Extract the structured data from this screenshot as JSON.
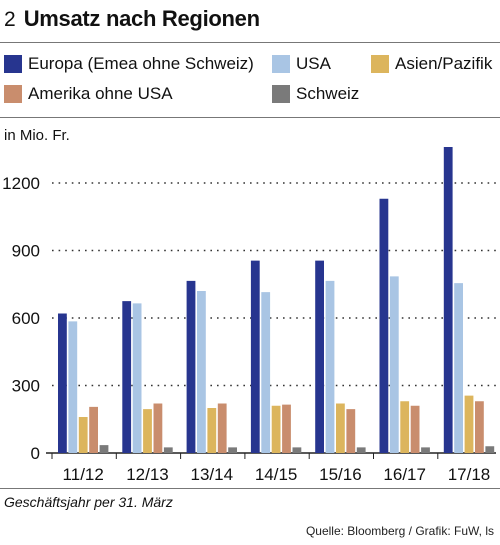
{
  "header": {
    "number": "2",
    "title": "Umsatz nach Regionen"
  },
  "unit_label": "in Mio. Fr.",
  "footnote": "Geschäftsjahr per 31. März",
  "source": "Quelle: Bloomberg / Grafik: FuW, ls",
  "chart_data": {
    "type": "bar",
    "title": "Umsatz nach Regionen",
    "ylabel": "in Mio. Fr.",
    "xlabel": "Geschäftsjahr per 31. März",
    "categories": [
      "11/12",
      "12/13",
      "13/14",
      "14/15",
      "15/16",
      "16/17",
      "17/18"
    ],
    "ylim": [
      0,
      1350
    ],
    "yticks": [
      0,
      300,
      600,
      900,
      1200
    ],
    "grid": true,
    "legend_position": "top",
    "series": [
      {
        "name": "Europa (Emea ohne Schweiz)",
        "color": "#27358f",
        "values": [
          620,
          675,
          765,
          855,
          855,
          1130,
          1360
        ]
      },
      {
        "name": "USA",
        "color": "#a9c5e4",
        "values": [
          585,
          665,
          720,
          715,
          765,
          785,
          755
        ]
      },
      {
        "name": "Asien/Pazifik",
        "color": "#dcb55d",
        "values": [
          160,
          195,
          200,
          210,
          220,
          230,
          255
        ]
      },
      {
        "name": "Amerika ohne USA",
        "color": "#c98d6d",
        "values": [
          205,
          220,
          220,
          215,
          195,
          210,
          230
        ]
      },
      {
        "name": "Schweiz",
        "color": "#7a7a7a",
        "values": [
          35,
          25,
          25,
          25,
          25,
          25,
          30
        ]
      }
    ]
  }
}
